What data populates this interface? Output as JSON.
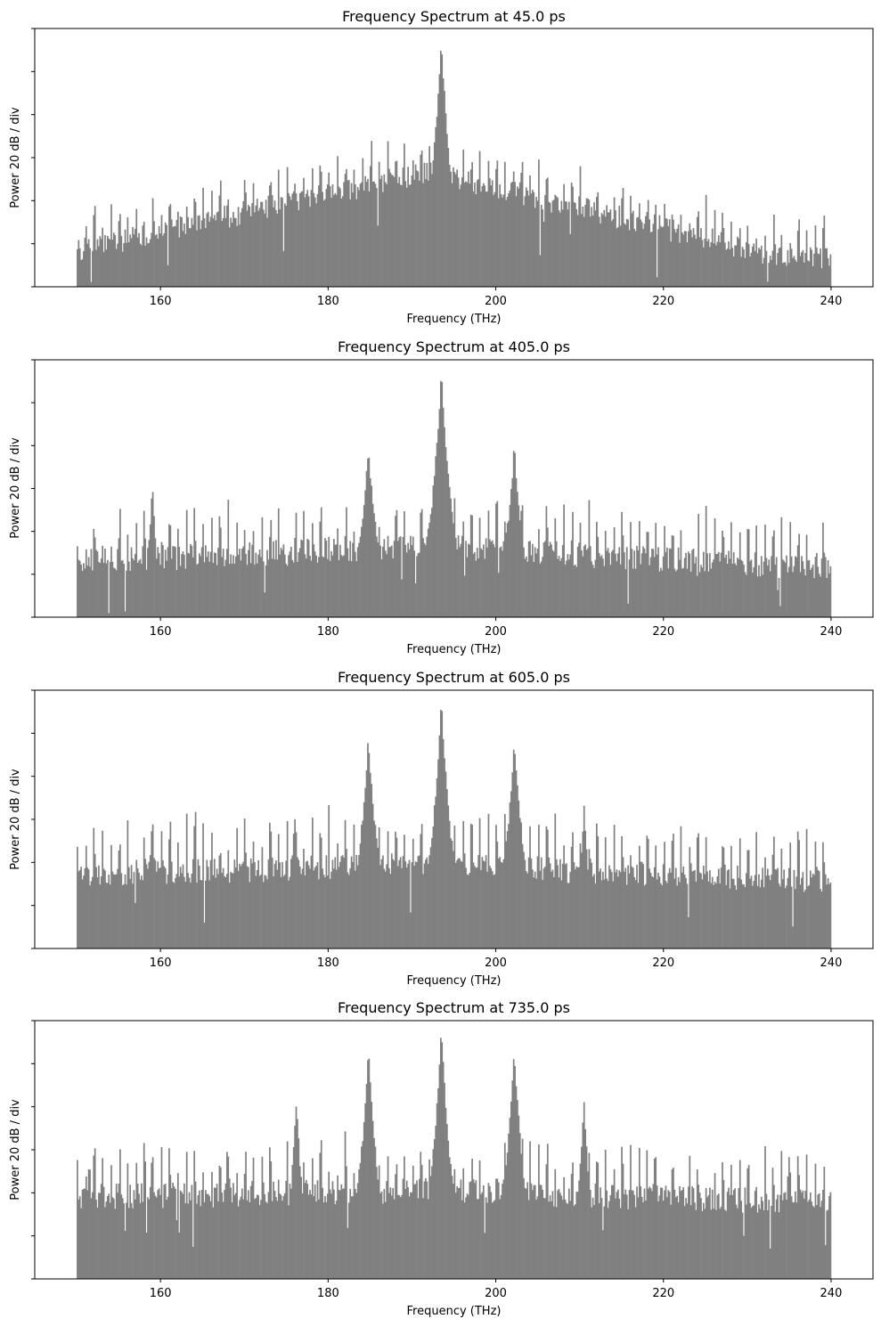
{
  "chart_data": [
    {
      "type": "bar",
      "title": "Frequency Spectrum at 45.0 ps",
      "xlabel": "Frequency (THz)",
      "ylabel": "Power 20 dB / div",
      "xlim": [
        145,
        245
      ],
      "ylim": [
        0,
        6
      ],
      "xticks": [
        160,
        180,
        200,
        220,
        240
      ],
      "yticks": [
        0,
        1,
        2,
        3,
        4,
        5,
        6
      ],
      "show_ytick_labels": false,
      "grid": false,
      "legend": "none",
      "color": "#808080",
      "x_range": [
        150,
        240
      ],
      "bin_count": 600,
      "baseline_level": [
        0.85,
        0.7
      ],
      "slope_center": 192,
      "baseline_peak_rise": 1.9,
      "peaks": [
        {
          "center": 193.5,
          "height": 5.8,
          "width": 0.9
        }
      ],
      "spike_amplitude": 0.55,
      "noise_amplitude": 0.55,
      "harmonic_spacing": 1.0
    },
    {
      "type": "bar",
      "title": "Frequency Spectrum at 405.0 ps",
      "xlabel": "Frequency (THz)",
      "ylabel": "Power 20 dB / div",
      "xlim": [
        145,
        245
      ],
      "ylim": [
        0,
        6
      ],
      "xticks": [
        160,
        180,
        200,
        220,
        240
      ],
      "yticks": [
        0,
        1,
        2,
        3,
        4,
        5,
        6
      ],
      "show_ytick_labels": false,
      "grid": false,
      "legend": "none",
      "color": "#808080",
      "x_range": [
        150,
        240
      ],
      "bin_count": 600,
      "baseline_level": [
        1.3,
        1.2
      ],
      "slope_center": 192,
      "baseline_peak_rise": 0.4,
      "peaks": [
        {
          "center": 193.5,
          "height": 5.8,
          "width": 0.9
        },
        {
          "center": 184.8,
          "height": 4.0,
          "width": 0.8
        },
        {
          "center": 202.2,
          "height": 4.0,
          "width": 0.8
        },
        {
          "center": 159.0,
          "height": 3.2,
          "width": 0.4
        }
      ],
      "spike_amplitude": 0.75,
      "noise_amplitude": 0.6,
      "harmonic_spacing": 1.0
    },
    {
      "type": "bar",
      "title": "Frequency Spectrum at 605.0 ps",
      "xlabel": "Frequency (THz)",
      "ylabel": "Power 20 dB / div",
      "xlim": [
        145,
        245
      ],
      "ylim": [
        0,
        6
      ],
      "xticks": [
        160,
        180,
        200,
        220,
        240
      ],
      "yticks": [
        0,
        1,
        2,
        3,
        4,
        5,
        6
      ],
      "show_ytick_labels": false,
      "grid": false,
      "legend": "none",
      "color": "#808080",
      "x_range": [
        150,
        240
      ],
      "bin_count": 600,
      "baseline_level": [
        1.7,
        1.6
      ],
      "slope_center": 192,
      "baseline_peak_rise": 0.3,
      "peaks": [
        {
          "center": 193.5,
          "height": 5.8,
          "width": 0.9
        },
        {
          "center": 184.8,
          "height": 4.9,
          "width": 0.9
        },
        {
          "center": 202.2,
          "height": 4.8,
          "width": 0.9
        },
        {
          "center": 176.0,
          "height": 3.1,
          "width": 0.5
        },
        {
          "center": 159.0,
          "height": 3.1,
          "width": 0.4
        },
        {
          "center": 210.5,
          "height": 3.3,
          "width": 0.5
        }
      ],
      "spike_amplitude": 0.8,
      "noise_amplitude": 0.6,
      "harmonic_spacing": 1.0
    },
    {
      "type": "bar",
      "title": "Frequency Spectrum at 735.0 ps",
      "xlabel": "Frequency (THz)",
      "ylabel": "Power 20 dB / div",
      "xlim": [
        145,
        245
      ],
      "ylim": [
        0,
        6
      ],
      "xticks": [
        160,
        180,
        200,
        220,
        240
      ],
      "yticks": [
        0,
        1,
        2,
        3,
        4,
        5,
        6
      ],
      "show_ytick_labels": false,
      "grid": false,
      "legend": "none",
      "color": "#808080",
      "x_range": [
        150,
        240
      ],
      "bin_count": 600,
      "baseline_level": [
        1.9,
        1.8
      ],
      "slope_center": 192,
      "baseline_peak_rise": 0.2,
      "peaks": [
        {
          "center": 193.5,
          "height": 5.8,
          "width": 0.9
        },
        {
          "center": 184.8,
          "height": 5.3,
          "width": 0.9
        },
        {
          "center": 202.2,
          "height": 5.3,
          "width": 0.9
        },
        {
          "center": 176.2,
          "height": 4.2,
          "width": 0.6
        },
        {
          "center": 210.5,
          "height": 4.2,
          "width": 0.6
        },
        {
          "center": 168.0,
          "height": 3.2,
          "width": 0.4
        },
        {
          "center": 219.0,
          "height": 3.2,
          "width": 0.4
        },
        {
          "center": 159.0,
          "height": 3.0,
          "width": 0.4
        },
        {
          "center": 151.5,
          "height": 3.0,
          "width": 0.3
        },
        {
          "center": 235.0,
          "height": 3.0,
          "width": 0.4
        }
      ],
      "spike_amplitude": 0.75,
      "noise_amplitude": 0.6,
      "harmonic_spacing": 1.0
    }
  ]
}
